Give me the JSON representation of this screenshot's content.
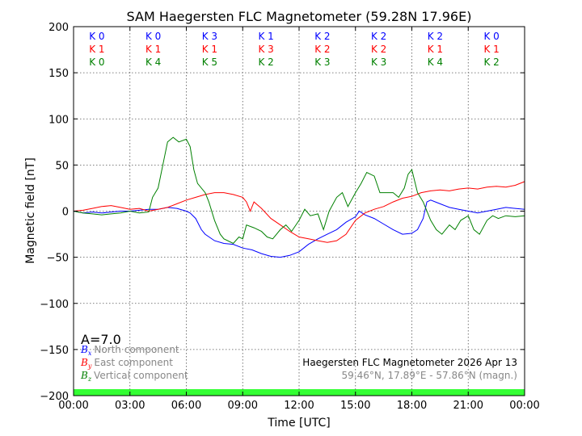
{
  "chart_data": {
    "type": "line",
    "title": "SAM Haegersten FLC Magnetometer (59.28N 17.96E)",
    "xlabel": "Time [UTC]",
    "ylabel": "Magnetic field [nT]",
    "xlim": [
      0,
      24
    ],
    "ylim": [
      -200,
      200
    ],
    "grid": true,
    "x_ticks": [
      0,
      3,
      6,
      9,
      12,
      15,
      18,
      21,
      24
    ],
    "x_tick_labels": [
      "00:00",
      "03:00",
      "06:00",
      "09:00",
      "12:00",
      "15:00",
      "18:00",
      "21:00",
      "00:00"
    ],
    "y_ticks": [
      200,
      150,
      100,
      50,
      0,
      -50,
      -100,
      -150,
      -200
    ],
    "y_tick_labels": [
      "200",
      "150",
      "100",
      "50",
      "0",
      "−50",
      "−100",
      "−150",
      "−200"
    ],
    "k_index": {
      "interval_hours": 3,
      "rows": [
        {
          "name": "Bx",
          "color": "#0000ff",
          "labels": [
            "K 0",
            "K 0",
            "K 3",
            "K 1",
            "K 2",
            "K 2",
            "K 2",
            "K 0"
          ]
        },
        {
          "name": "By",
          "color": "#ff0000",
          "labels": [
            "K 1",
            "K 1",
            "K 1",
            "K 3",
            "K 2",
            "K 2",
            "K 1",
            "K 1"
          ]
        },
        {
          "name": "Bz",
          "color": "#008000",
          "labels": [
            "K 0",
            "K 4",
            "K 5",
            "K 2",
            "K 3",
            "K 3",
            "K 4",
            "K 2"
          ]
        }
      ]
    },
    "a_index": "A=7.0",
    "legend": {
      "placement": "bottom-left",
      "items": [
        {
          "symbol": "B",
          "sub": "x",
          "label": "North component",
          "color": "#0000ff"
        },
        {
          "symbol": "B",
          "sub": "y",
          "label": "East component",
          "color": "#ff0000"
        },
        {
          "symbol": "B",
          "sub": "z",
          "label": "Vertical component",
          "color": "#008000"
        }
      ]
    },
    "annotation": {
      "line1": "Haegersten FLC Magnetometer 2026 Apr 13",
      "line2": "59.46°N, 17.89°E - 57.86°N (magn.)"
    },
    "quiet_band": {
      "from": -200,
      "to": -193,
      "color": "#33ff33"
    },
    "series": [
      {
        "name": "North component",
        "color": "#0000ff",
        "points": [
          [
            0,
            0
          ],
          [
            0.5,
            -2
          ],
          [
            1,
            -1
          ],
          [
            1.5,
            -2
          ],
          [
            2,
            -1
          ],
          [
            2.5,
            0
          ],
          [
            3,
            0
          ],
          [
            3.5,
            1
          ],
          [
            4,
            2
          ],
          [
            4.5,
            2
          ],
          [
            5,
            4
          ],
          [
            5.5,
            3
          ],
          [
            6,
            0
          ],
          [
            6.2,
            -2
          ],
          [
            6.5,
            -8
          ],
          [
            6.8,
            -20
          ],
          [
            7,
            -25
          ],
          [
            7.5,
            -32
          ],
          [
            8,
            -35
          ],
          [
            8.5,
            -36
          ],
          [
            9,
            -40
          ],
          [
            9.5,
            -42
          ],
          [
            10,
            -46
          ],
          [
            10.5,
            -49
          ],
          [
            11,
            -50
          ],
          [
            11.5,
            -48
          ],
          [
            12,
            -44
          ],
          [
            12.5,
            -36
          ],
          [
            13,
            -30
          ],
          [
            13.5,
            -25
          ],
          [
            14,
            -20
          ],
          [
            14.5,
            -12
          ],
          [
            15,
            -6
          ],
          [
            15.2,
            0
          ],
          [
            15.5,
            -4
          ],
          [
            16,
            -8
          ],
          [
            16.5,
            -14
          ],
          [
            17,
            -20
          ],
          [
            17.5,
            -25
          ],
          [
            18,
            -24
          ],
          [
            18.3,
            -20
          ],
          [
            18.6,
            -8
          ],
          [
            18.8,
            10
          ],
          [
            19,
            12
          ],
          [
            19.5,
            8
          ],
          [
            20,
            4
          ],
          [
            20.5,
            2
          ],
          [
            21,
            0
          ],
          [
            21.5,
            -2
          ],
          [
            22,
            0
          ],
          [
            22.5,
            2
          ],
          [
            23,
            4
          ],
          [
            23.5,
            3
          ],
          [
            24,
            2
          ]
        ]
      },
      {
        "name": "East component",
        "color": "#ff0000",
        "points": [
          [
            0,
            0
          ],
          [
            0.5,
            1
          ],
          [
            1,
            3
          ],
          [
            1.5,
            5
          ],
          [
            2,
            6
          ],
          [
            2.5,
            4
          ],
          [
            3,
            2
          ],
          [
            3.5,
            3
          ],
          [
            4,
            0
          ],
          [
            4.5,
            2
          ],
          [
            5,
            4
          ],
          [
            5.5,
            8
          ],
          [
            6,
            12
          ],
          [
            6.5,
            15
          ],
          [
            7,
            18
          ],
          [
            7.5,
            20
          ],
          [
            8,
            20
          ],
          [
            8.5,
            18
          ],
          [
            9,
            15
          ],
          [
            9.2,
            10
          ],
          [
            9.4,
            0
          ],
          [
            9.6,
            10
          ],
          [
            10,
            3
          ],
          [
            10.5,
            -8
          ],
          [
            11,
            -15
          ],
          [
            11.5,
            -22
          ],
          [
            12,
            -28
          ],
          [
            12.5,
            -30
          ],
          [
            13,
            -32
          ],
          [
            13.5,
            -34
          ],
          [
            14,
            -32
          ],
          [
            14.5,
            -25
          ],
          [
            15,
            -10
          ],
          [
            15.5,
            -2
          ],
          [
            16,
            2
          ],
          [
            16.5,
            5
          ],
          [
            17,
            10
          ],
          [
            17.5,
            14
          ],
          [
            18,
            16
          ],
          [
            18.5,
            20
          ],
          [
            19,
            22
          ],
          [
            19.5,
            23
          ],
          [
            20,
            22
          ],
          [
            20.5,
            24
          ],
          [
            21,
            25
          ],
          [
            21.5,
            24
          ],
          [
            22,
            26
          ],
          [
            22.5,
            27
          ],
          [
            23,
            26
          ],
          [
            23.5,
            28
          ],
          [
            24,
            32
          ]
        ]
      },
      {
        "name": "Vertical component",
        "color": "#008000",
        "points": [
          [
            0,
            0
          ],
          [
            0.5,
            -2
          ],
          [
            1,
            -3
          ],
          [
            1.5,
            -4
          ],
          [
            2,
            -3
          ],
          [
            2.5,
            -2
          ],
          [
            3,
            0
          ],
          [
            3.5,
            -2
          ],
          [
            4,
            -1
          ],
          [
            4.2,
            15
          ],
          [
            4.5,
            25
          ],
          [
            4.8,
            55
          ],
          [
            5,
            75
          ],
          [
            5.3,
            80
          ],
          [
            5.6,
            75
          ],
          [
            6,
            78
          ],
          [
            6.2,
            70
          ],
          [
            6.4,
            45
          ],
          [
            6.6,
            30
          ],
          [
            7,
            20
          ],
          [
            7.2,
            10
          ],
          [
            7.5,
            -10
          ],
          [
            7.8,
            -25
          ],
          [
            8,
            -30
          ],
          [
            8.5,
            -35
          ],
          [
            8.8,
            -28
          ],
          [
            9,
            -30
          ],
          [
            9.2,
            -15
          ],
          [
            9.6,
            -18
          ],
          [
            10,
            -22
          ],
          [
            10.3,
            -28
          ],
          [
            10.6,
            -30
          ],
          [
            11,
            -20
          ],
          [
            11.3,
            -15
          ],
          [
            11.6,
            -22
          ],
          [
            12,
            -10
          ],
          [
            12.3,
            2
          ],
          [
            12.6,
            -5
          ],
          [
            13,
            -3
          ],
          [
            13.3,
            -20
          ],
          [
            13.6,
            0
          ],
          [
            14,
            15
          ],
          [
            14.3,
            20
          ],
          [
            14.6,
            5
          ],
          [
            15,
            20
          ],
          [
            15.3,
            30
          ],
          [
            15.6,
            42
          ],
          [
            16,
            38
          ],
          [
            16.3,
            20
          ],
          [
            16.6,
            20
          ],
          [
            17,
            20
          ],
          [
            17.3,
            15
          ],
          [
            17.6,
            25
          ],
          [
            17.8,
            40
          ],
          [
            18,
            45
          ],
          [
            18.3,
            20
          ],
          [
            18.6,
            10
          ],
          [
            19,
            -10
          ],
          [
            19.3,
            -20
          ],
          [
            19.6,
            -25
          ],
          [
            20,
            -15
          ],
          [
            20.3,
            -20
          ],
          [
            20.6,
            -10
          ],
          [
            21,
            -5
          ],
          [
            21.3,
            -20
          ],
          [
            21.6,
            -25
          ],
          [
            22,
            -10
          ],
          [
            22.3,
            -5
          ],
          [
            22.6,
            -8
          ],
          [
            23,
            -5
          ],
          [
            23.5,
            -6
          ],
          [
            24,
            -5
          ]
        ]
      }
    ]
  }
}
